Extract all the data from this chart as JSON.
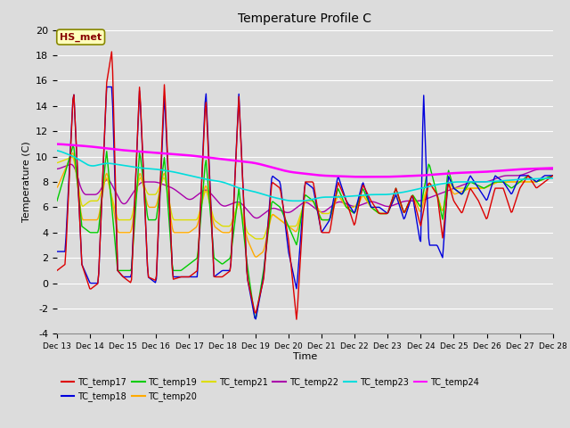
{
  "title": "Temperature Profile C",
  "xlabel": "Time",
  "ylabel": "Temperature (C)",
  "ylim": [
    -4,
    20
  ],
  "xlim": [
    0,
    360
  ],
  "background_color": "#dcdcdc",
  "plot_bg_color": "#dcdcdc",
  "series_colors": {
    "TC_temp17": "#dd0000",
    "TC_temp18": "#0000dd",
    "TC_temp19": "#00cc00",
    "TC_temp20": "#ffaa00",
    "TC_temp21": "#dddd00",
    "TC_temp22": "#aa00aa",
    "TC_temp23": "#00dddd",
    "TC_temp24": "#ff00ff"
  },
  "xtick_labels": [
    "Dec 13",
    "Dec 14",
    "Dec 15",
    "Dec 16",
    "Dec 17",
    "Dec 18",
    "Dec 19",
    "Dec 20",
    "Dec 21",
    "Dec 22",
    "Dec 23",
    "Dec 24",
    "Dec 25",
    "Dec 26",
    "Dec 27",
    "Dec 28"
  ],
  "xtick_positions": [
    0,
    24,
    48,
    72,
    96,
    120,
    144,
    168,
    192,
    216,
    240,
    264,
    288,
    312,
    336,
    360
  ],
  "annotation_text": "HS_met",
  "yticks": [
    -4,
    -2,
    0,
    2,
    4,
    6,
    8,
    10,
    12,
    14,
    16,
    18,
    20
  ]
}
